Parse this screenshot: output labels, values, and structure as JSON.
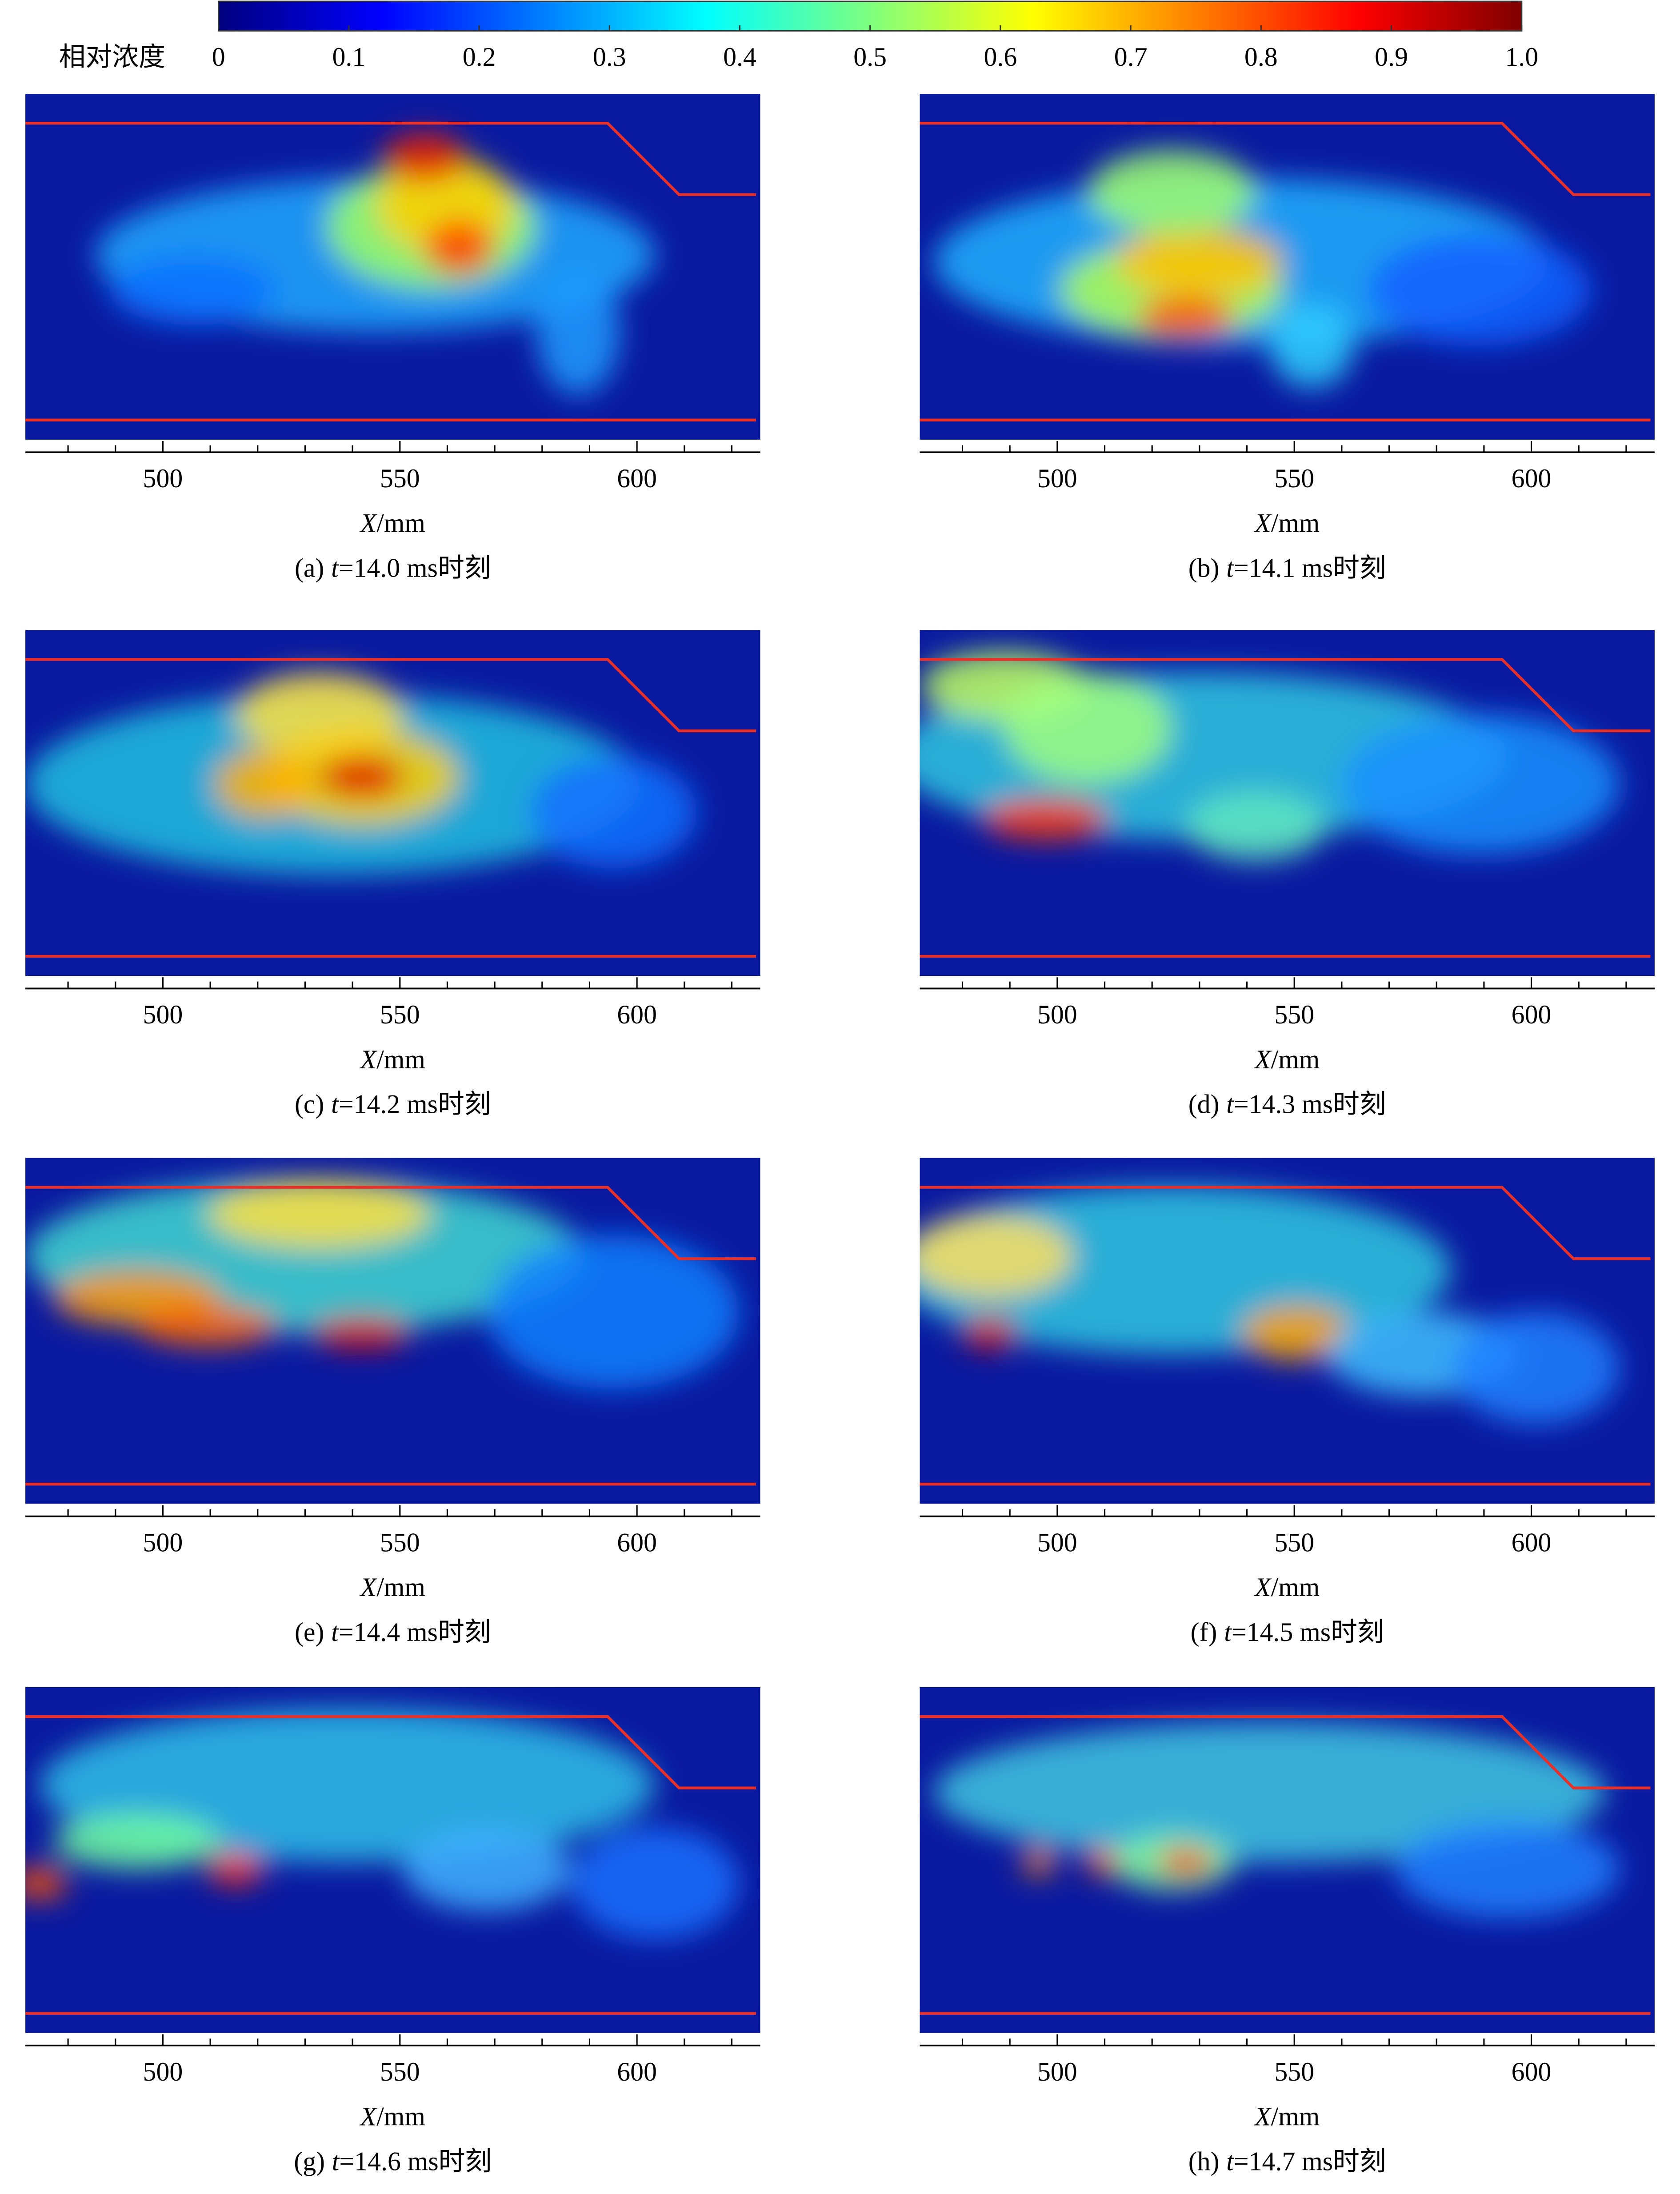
{
  "colorbar": {
    "label": "相对浓度",
    "lim": [
      0,
      1
    ],
    "ticks": [
      0,
      0.1,
      0.2,
      0.3,
      0.4,
      0.5,
      0.6,
      0.7,
      0.8,
      0.9,
      {
        "value": 1,
        "label": "1.0"
      }
    ],
    "colors": [
      "#00007f",
      "#0000ff",
      "#007fff",
      "#00ffff",
      "#7fff7f",
      "#ffff00",
      "#ff7f00",
      "#ff0000",
      "#7f0000"
    ]
  },
  "chart_data": [
    {
      "type": "heatmap",
      "xlim": [
        471,
        626
      ],
      "xticks": [
        500,
        550,
        600
      ],
      "minor_xticks": [
        480,
        490,
        510,
        520,
        530,
        540,
        560,
        570,
        580,
        590,
        610,
        620
      ],
      "xlabel_var": "X",
      "xlabel_unit": "/mm",
      "caption_prefix": "(a)",
      "caption_var": "t",
      "caption_rest": "=14.0 ms时刻"
    },
    {
      "type": "heatmap",
      "xlim": [
        471,
        626
      ],
      "xticks": [
        500,
        550,
        600
      ],
      "minor_xticks": [
        480,
        490,
        510,
        520,
        530,
        540,
        560,
        570,
        580,
        590,
        610,
        620
      ],
      "xlabel_var": "X",
      "xlabel_unit": "/mm",
      "caption_prefix": "(b)",
      "caption_var": "t",
      "caption_rest": "=14.1 ms时刻"
    },
    {
      "type": "heatmap",
      "xlim": [
        471,
        626
      ],
      "xticks": [
        500,
        550,
        600
      ],
      "minor_xticks": [
        480,
        490,
        510,
        520,
        530,
        540,
        560,
        570,
        580,
        590,
        610,
        620
      ],
      "xlabel_var": "X",
      "xlabel_unit": "/mm",
      "caption_prefix": "(c)",
      "caption_var": "t",
      "caption_rest": "=14.2 ms时刻"
    },
    {
      "type": "heatmap",
      "xlim": [
        471,
        626
      ],
      "xticks": [
        500,
        550,
        600
      ],
      "minor_xticks": [
        480,
        490,
        510,
        520,
        530,
        540,
        560,
        570,
        580,
        590,
        610,
        620
      ],
      "xlabel_var": "X",
      "xlabel_unit": "/mm",
      "caption_prefix": "(d)",
      "caption_var": "t",
      "caption_rest": "=14.3 ms时刻"
    },
    {
      "type": "heatmap",
      "xlim": [
        471,
        626
      ],
      "xticks": [
        500,
        550,
        600
      ],
      "minor_xticks": [
        480,
        490,
        510,
        520,
        530,
        540,
        560,
        570,
        580,
        590,
        610,
        620
      ],
      "xlabel_var": "X",
      "xlabel_unit": "/mm",
      "caption_prefix": "(e)",
      "caption_var": "t",
      "caption_rest": "=14.4 ms时刻"
    },
    {
      "type": "heatmap",
      "xlim": [
        471,
        626
      ],
      "xticks": [
        500,
        550,
        600
      ],
      "minor_xticks": [
        480,
        490,
        510,
        520,
        530,
        540,
        560,
        570,
        580,
        590,
        610,
        620
      ],
      "xlabel_var": "X",
      "xlabel_unit": "/mm",
      "caption_prefix": "(f)",
      "caption_var": "t",
      "caption_rest": "=14.5 ms时刻"
    },
    {
      "type": "heatmap",
      "xlim": [
        471,
        626
      ],
      "xticks": [
        500,
        550,
        600
      ],
      "minor_xticks": [
        480,
        490,
        510,
        520,
        530,
        540,
        560,
        570,
        580,
        590,
        610,
        620
      ],
      "xlabel_var": "X",
      "xlabel_unit": "/mm",
      "caption_prefix": "(g)",
      "caption_var": "t",
      "caption_rest": "=14.6 ms时刻"
    },
    {
      "type": "heatmap",
      "xlim": [
        471,
        626
      ],
      "xticks": [
        500,
        550,
        600
      ],
      "minor_xticks": [
        480,
        490,
        510,
        520,
        530,
        540,
        560,
        570,
        580,
        590,
        610,
        620
      ],
      "xlabel_var": "X",
      "xlabel_unit": "/mm",
      "caption_prefix": "(h)",
      "caption_var": "t",
      "caption_rest": "=14.7 ms时刻"
    }
  ]
}
